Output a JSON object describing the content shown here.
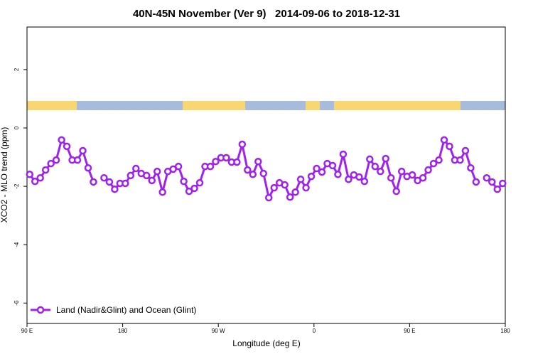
{
  "chart_data": {
    "type": "line",
    "title": "40N-45N November (Ver 9)   2014-09-06 to 2018-12-31",
    "x_label": "Longitude (deg E)",
    "y_label": "XCO2 - MLO trend (ppm)",
    "xlim": [
      90,
      540
    ],
    "ylim": [
      -6.7,
      3.46
    ],
    "xticks": [
      {
        "value": 90,
        "label": "90 E"
      },
      180,
      {
        "value": 270,
        "label": "90 W"
      },
      {
        "value": 360,
        "label": "0"
      },
      {
        "value": 450,
        "label": "90 E"
      },
      {
        "value": 540,
        "label": "180"
      }
    ],
    "yticks": [
      -6,
      -4,
      -2,
      0,
      2
    ],
    "legend": "bottom-left",
    "x": [
      92.5,
      97.5,
      102.5,
      107.5,
      112.5,
      117.5,
      122.5,
      127.5,
      132.5,
      137.5,
      142.5,
      147.5,
      152.5,
      157.5,
      162.5,
      167.5,
      172.5,
      177.5,
      182.5,
      187.5,
      192.5,
      197.5,
      202.5,
      207.5,
      212.5,
      217.5,
      222.5,
      227.5,
      232.5,
      237.5,
      242.5,
      247.5,
      252.5,
      257.5,
      262.5,
      267.5,
      272.5,
      277.5,
      282.5,
      287.5,
      292.5,
      297.5,
      302.5,
      307.5,
      312.5,
      317.5,
      322.5,
      327.5,
      332.5,
      337.5,
      342.5,
      347.5,
      352.5,
      357.5,
      362.5,
      367.5,
      372.5,
      377.5,
      382.5,
      387.5,
      392.5,
      397.5,
      402.5,
      407.5,
      412.5,
      417.5,
      422.5,
      427.5,
      432.5,
      437.5,
      442.5,
      447.5,
      452.5,
      457.5,
      462.5,
      467.5,
      472.5,
      477.5,
      482.5,
      487.5,
      492.5,
      497.5,
      502.5,
      507.5,
      512.5,
      517.5,
      522.5,
      527.5,
      532.5,
      537.5
    ],
    "series": [
      {
        "name": "Land (Nadir&Glint) and Ocean (Glint)",
        "color": "#a020f0",
        "values": [
          -1.59,
          -1.83,
          -1.71,
          -1.44,
          -1.22,
          -1.1,
          -0.41,
          -0.63,
          -1.1,
          -1.1,
          -0.78,
          -1.37,
          -1.85,
          null,
          -1.71,
          -1.85,
          -2.1,
          -1.9,
          -1.9,
          -1.63,
          -1.39,
          -1.56,
          -1.63,
          -1.8,
          -1.49,
          -2.2,
          -1.49,
          -1.41,
          -1.32,
          -1.83,
          -2.17,
          -2.07,
          -1.88,
          -1.32,
          -1.32,
          -1.15,
          -1.02,
          -1.02,
          -1.17,
          -1.17,
          -0.56,
          -1.44,
          -1.59,
          -1.15,
          -1.56,
          -2.39,
          -2.05,
          -1.88,
          -1.95,
          -2.37,
          -2.2,
          -1.76,
          -2.05,
          -1.66,
          -1.39,
          -1.51,
          -1.22,
          -1.29,
          -1.59,
          -0.9,
          -1.76,
          -1.61,
          -1.68,
          -1.83,
          -1.07,
          -1.32,
          -1.49,
          -1.05,
          -1.71,
          -2.17,
          -1.49,
          -1.66,
          -1.61,
          -1.8,
          -1.71,
          -1.44,
          -1.22,
          -1.1,
          -0.41,
          -0.63,
          -1.1,
          -1.1,
          -0.78,
          -1.37,
          -1.85,
          null,
          -1.71,
          -1.85,
          -2.1,
          -1.9
        ]
      }
    ]
  }
}
